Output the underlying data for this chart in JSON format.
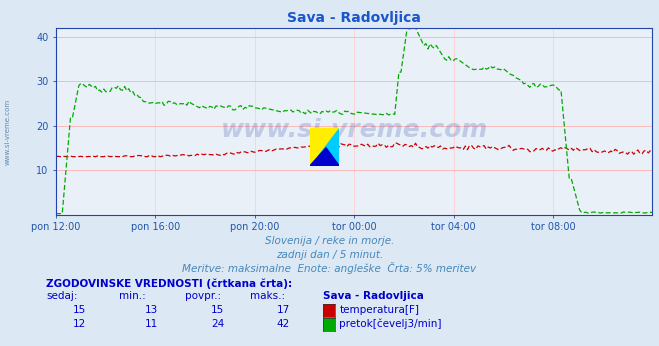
{
  "title": "Sava - Radovljica",
  "title_color": "#1a56cc",
  "bg_color": "#dce8f4",
  "plot_bg_color": "#eaf0f8",
  "grid_color_h": "#ffb0b0",
  "grid_color_v": "#ffd0d0",
  "xlabel_color": "#2255aa",
  "ylabel_color": "#2255aa",
  "watermark": "www.si-vreme.com",
  "watermark_color": "#2244aa",
  "subtitle1": "Slovenija / reke in morje.",
  "subtitle2": "zadnji dan / 5 minut.",
  "subtitle3": "Meritve: maksimalne  Enote: angleške  Črta: 5% meritev",
  "subtitle_color": "#4488bb",
  "ylim": [
    0,
    42
  ],
  "yticks": [
    10,
    20,
    30,
    40
  ],
  "xtick_labels": [
    "pon 12:00",
    "pon 16:00",
    "pon 20:00",
    "tor 00:00",
    "tor 04:00",
    "tor 08:00"
  ],
  "xtick_positions": [
    0.0,
    0.1667,
    0.3333,
    0.5,
    0.6667,
    0.8333
  ],
  "n_points": 288,
  "temp_color": "#cc0000",
  "flow_color": "#00aa00",
  "table_title": "ZGODOVINSKE VREDNOSTI (črtkana črta):",
  "table_headers": [
    "sedaj:",
    "min.:",
    "povpr.:",
    "maks.:",
    "Sava - Radovljica"
  ],
  "table_rows": [
    [
      15,
      13,
      15,
      17,
      "temperatura[F]"
    ],
    [
      12,
      11,
      24,
      42,
      "pretok[čevelj3/min]"
    ]
  ],
  "legend_colors": [
    "#cc0000",
    "#00aa00"
  ],
  "table_color": "#0000cc",
  "side_watermark": "www.si-vreme.com",
  "side_watermark_color": "#6688aa",
  "axis_color": "#2244aa"
}
